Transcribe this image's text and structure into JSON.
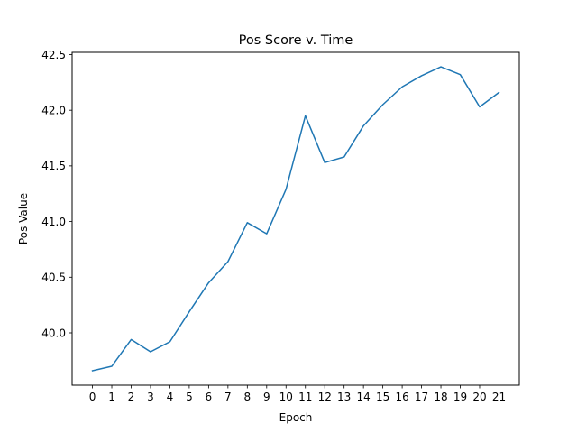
{
  "chart_data": {
    "type": "line",
    "title": "Pos Score v. Time",
    "xlabel": "Epoch",
    "ylabel": "Pos Value",
    "x": [
      0,
      1,
      2,
      3,
      4,
      5,
      6,
      7,
      8,
      9,
      10,
      11,
      12,
      13,
      14,
      15,
      16,
      17,
      18,
      19,
      20,
      21
    ],
    "series": [
      {
        "values": [
          39.66,
          39.7,
          39.94,
          39.83,
          39.92,
          40.19,
          40.45,
          40.64,
          40.99,
          40.89,
          41.29,
          41.95,
          41.53,
          41.58,
          41.86,
          42.05,
          42.21,
          42.31,
          42.39,
          42.32,
          42.03,
          42.16
        ],
        "color": "#1f77b4"
      }
    ],
    "xlim": [
      -1.05,
      22.05
    ],
    "ylim": [
      39.53,
      42.52
    ],
    "xticks": [
      0,
      1,
      2,
      3,
      4,
      5,
      6,
      7,
      8,
      9,
      10,
      11,
      12,
      13,
      14,
      15,
      16,
      17,
      18,
      19,
      20,
      21
    ],
    "yticks": [
      40.0,
      40.5,
      41.0,
      41.5,
      42.0,
      42.5
    ],
    "ytick_labels": [
      "40.0",
      "40.5",
      "41.0",
      "41.5",
      "42.0",
      "42.5"
    ],
    "grid": false,
    "legend": "none"
  }
}
